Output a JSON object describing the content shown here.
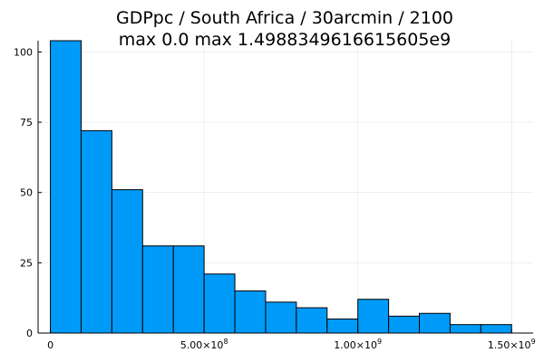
{
  "chart_data": {
    "type": "bar",
    "title": "GDPpc / South Africa / 30arcmin / 2100",
    "subtitle": "max 0.0  max 1.4988349616615605e9",
    "xlabel": "",
    "ylabel": "",
    "bin_edges": [
      0,
      100000000,
      200000000,
      300000000,
      400000000,
      500000000,
      600000000,
      700000000,
      800000000,
      900000000,
      1000000000,
      1100000000,
      1200000000,
      1300000000,
      1400000000,
      1500000000
    ],
    "values": [
      104,
      72,
      51,
      31,
      31,
      21,
      15,
      11,
      9,
      5,
      12,
      6,
      7,
      3,
      3
    ],
    "xlim": [
      -40000000,
      1570000000
    ],
    "ylim": [
      0,
      104
    ],
    "x_ticks": [
      {
        "value": 0,
        "label": "0",
        "exp": ""
      },
      {
        "value": 500000000,
        "label": "5.00×10",
        "exp": "8"
      },
      {
        "value": 1000000000,
        "label": "1.00×10",
        "exp": "9"
      },
      {
        "value": 1500000000,
        "label": "1.50×10",
        "exp": "9"
      }
    ],
    "y_ticks": [
      {
        "value": 0,
        "label": "0"
      },
      {
        "value": 25,
        "label": "25"
      },
      {
        "value": 50,
        "label": "50"
      },
      {
        "value": 75,
        "label": "75"
      },
      {
        "value": 100,
        "label": "100"
      }
    ],
    "grid": true,
    "legend": "none",
    "colors": {
      "bar_fill": "#009af9",
      "bar_stroke": "#000000"
    }
  }
}
